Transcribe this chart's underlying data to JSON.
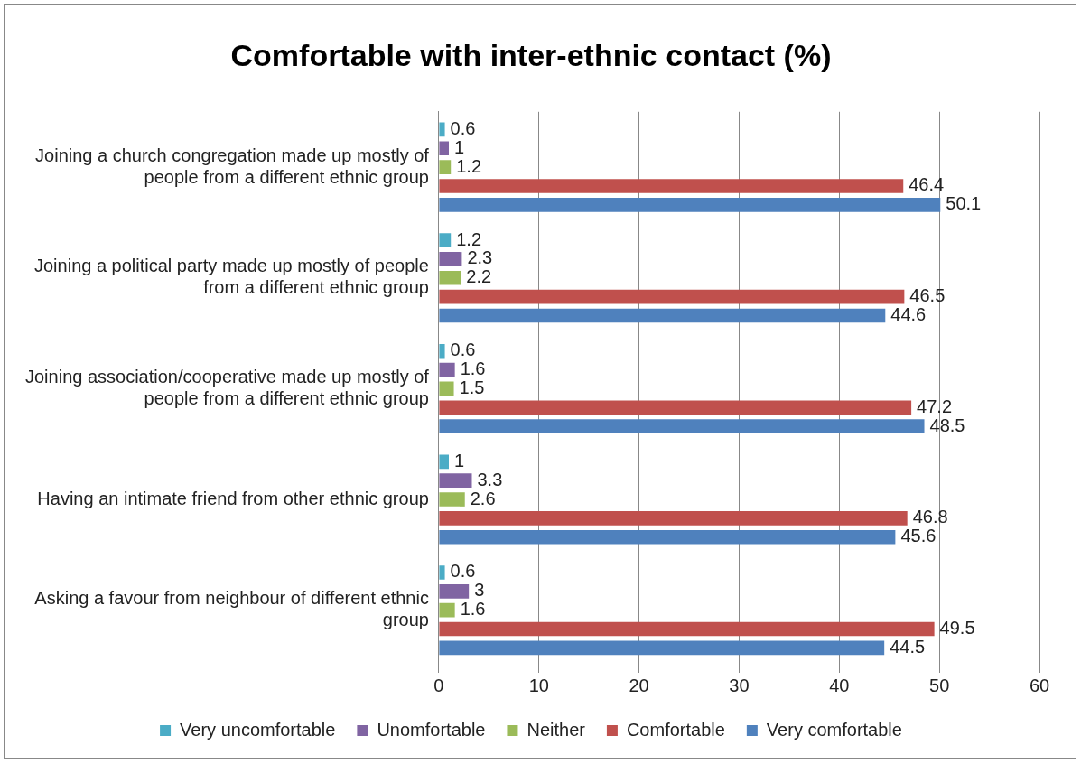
{
  "chart_data": {
    "type": "bar",
    "orientation": "horizontal",
    "title": "Comfortable with inter-ethnic contact (%)",
    "categories": [
      "Joining a church congregation made up mostly of people from a different ethnic group",
      "Joining a political party made up mostly of people from a different ethnic group",
      "Joining association/cooperative made up mostly of people from a different ethnic group",
      "Having an intimate friend from other ethnic group",
      "Asking a favour from neighbour of different ethnic group"
    ],
    "series": [
      {
        "name": "Very uncomfortable",
        "color": "#4bacc6",
        "values": [
          0.6,
          1.2,
          0.6,
          1,
          0.6
        ]
      },
      {
        "name": "Unomfortable",
        "color": "#8064a2",
        "values": [
          1,
          2.3,
          1.6,
          3.3,
          3
        ]
      },
      {
        "name": "Neither",
        "color": "#9bbb59",
        "values": [
          1.2,
          2.2,
          1.5,
          2.6,
          1.6
        ]
      },
      {
        "name": "Comfortable",
        "color": "#c0504d",
        "values": [
          46.4,
          46.5,
          47.2,
          46.8,
          49.5
        ]
      },
      {
        "name": "Very comfortable",
        "color": "#4f81bd",
        "values": [
          50.1,
          44.6,
          48.5,
          45.6,
          44.5
        ]
      }
    ],
    "xlim": [
      0,
      60
    ],
    "xticks": [
      0,
      10,
      20,
      30,
      40,
      50,
      60
    ],
    "grid": "x",
    "legend": "bottom",
    "data_labels": true
  }
}
